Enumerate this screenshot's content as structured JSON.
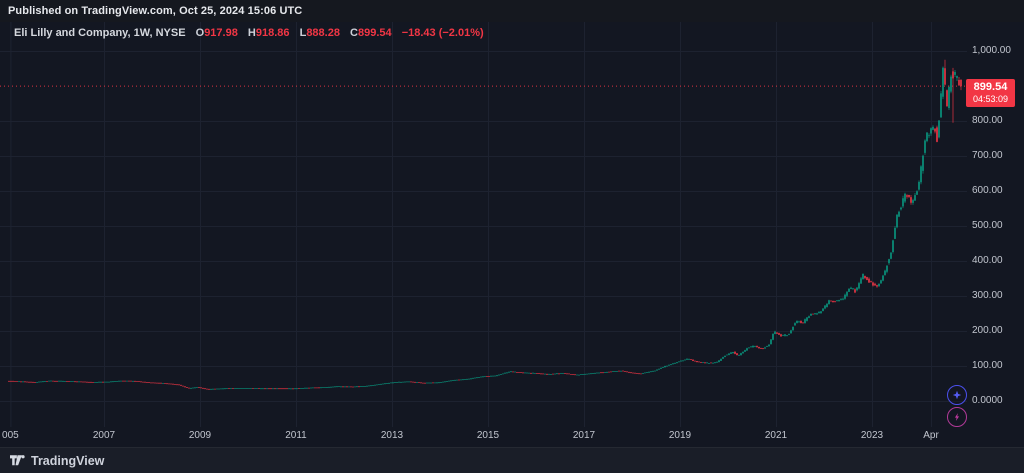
{
  "meta": {
    "published_text": "Published on TradingView.com, Oct 25, 2024 15:06 UTC"
  },
  "legend": {
    "title": "Eli Lilly and Company, 1W, NYSE",
    "ohlc": {
      "o": {
        "k": "O",
        "v": "917.98"
      },
      "h": {
        "k": "H",
        "v": "918.86"
      },
      "l": {
        "k": "L",
        "v": "888.28"
      },
      "c": {
        "k": "C",
        "v": "899.54"
      }
    },
    "change": "−18.43 (−2.01%)"
  },
  "price_label": {
    "price": "899.54",
    "countdown": "04:53:09"
  },
  "footer": {
    "brand": "TradingView"
  },
  "icons": {
    "bottom_right": [
      "four-point-star",
      "lightning-bolt"
    ]
  },
  "colors": {
    "bg": "#131722",
    "grid": "#1d2230",
    "up": "#089981",
    "down": "#f23645",
    "axis_text": "#c2c6cf",
    "price_line": "#f23645",
    "button_blue": "#4b50ee",
    "button_purple": "#b13a98"
  },
  "chart_data": {
    "type": "candlestick",
    "title": "Eli Lilly and Company",
    "interval": "1W",
    "exchange": "NYSE",
    "current": {
      "open": 917.98,
      "high": 918.86,
      "low": 888.28,
      "close": 899.54,
      "change": -18.43,
      "change_pct": -2.01
    },
    "y_axis": {
      "min": 0,
      "max": 1000,
      "tick_step": 100,
      "grid": true,
      "labels": [
        {
          "value": 1000,
          "text": "1,000.00"
        },
        {
          "value": 800,
          "text": "800.00"
        },
        {
          "value": 700,
          "text": "700.00"
        },
        {
          "value": 600,
          "text": "600.00"
        },
        {
          "value": 500,
          "text": "500.00"
        },
        {
          "value": 400,
          "text": "400.00"
        },
        {
          "value": 300,
          "text": "300.00"
        },
        {
          "value": 200,
          "text": "200.00"
        },
        {
          "value": 100,
          "text": "100.00"
        },
        {
          "value": 0,
          "text": "0.0000"
        }
      ]
    },
    "x_axis": {
      "start_year": 2005,
      "end_year": 2024.83,
      "labels": [
        {
          "text": "005",
          "t": 2005.05
        },
        {
          "text": "2007",
          "t": 2007
        },
        {
          "text": "2009",
          "t": 2009
        },
        {
          "text": "2011",
          "t": 2011
        },
        {
          "text": "2013",
          "t": 2013
        },
        {
          "text": "2015",
          "t": 2015
        },
        {
          "text": "2017",
          "t": 2017
        },
        {
          "text": "2019",
          "t": 2019
        },
        {
          "text": "2021",
          "t": 2021
        },
        {
          "text": "2023",
          "t": 2023
        },
        {
          "text": "Apr",
          "t": 2024.23
        }
      ]
    },
    "price_anchors": [
      [
        2005.0,
        57
      ],
      [
        2005.3,
        55
      ],
      [
        2005.6,
        53
      ],
      [
        2005.9,
        57
      ],
      [
        2006.2,
        56
      ],
      [
        2006.5,
        55
      ],
      [
        2006.8,
        53
      ],
      [
        2007.1,
        54
      ],
      [
        2007.4,
        57
      ],
      [
        2007.7,
        56
      ],
      [
        2008.0,
        52
      ],
      [
        2008.3,
        50
      ],
      [
        2008.6,
        46
      ],
      [
        2008.8,
        36
      ],
      [
        2009.0,
        39
      ],
      [
        2009.2,
        33
      ],
      [
        2009.5,
        35
      ],
      [
        2009.8,
        36
      ],
      [
        2010.1,
        36
      ],
      [
        2010.4,
        35
      ],
      [
        2010.7,
        35
      ],
      [
        2011.0,
        35
      ],
      [
        2011.3,
        37
      ],
      [
        2011.6,
        38
      ],
      [
        2011.9,
        41
      ],
      [
        2012.2,
        40
      ],
      [
        2012.5,
        42
      ],
      [
        2012.8,
        48
      ],
      [
        2013.1,
        53
      ],
      [
        2013.4,
        55
      ],
      [
        2013.7,
        51
      ],
      [
        2014.0,
        52
      ],
      [
        2014.3,
        59
      ],
      [
        2014.6,
        62
      ],
      [
        2014.9,
        69
      ],
      [
        2015.2,
        72
      ],
      [
        2015.5,
        84
      ],
      [
        2015.7,
        81
      ],
      [
        2016.0,
        79
      ],
      [
        2016.3,
        76
      ],
      [
        2016.6,
        79
      ],
      [
        2016.9,
        74
      ],
      [
        2017.2,
        79
      ],
      [
        2017.5,
        82
      ],
      [
        2017.8,
        86
      ],
      [
        2018.0,
        81
      ],
      [
        2018.2,
        77
      ],
      [
        2018.5,
        86
      ],
      [
        2018.7,
        98
      ],
      [
        2019.0,
        112
      ],
      [
        2019.2,
        120
      ],
      [
        2019.4,
        112
      ],
      [
        2019.6,
        108
      ],
      [
        2019.8,
        110
      ],
      [
        2020.0,
        132
      ],
      [
        2020.15,
        140
      ],
      [
        2020.25,
        128
      ],
      [
        2020.45,
        152
      ],
      [
        2020.6,
        158
      ],
      [
        2020.75,
        148
      ],
      [
        2020.9,
        162
      ],
      [
        2021.0,
        198
      ],
      [
        2021.15,
        186
      ],
      [
        2021.3,
        190
      ],
      [
        2021.45,
        228
      ],
      [
        2021.6,
        224
      ],
      [
        2021.75,
        248
      ],
      [
        2021.9,
        250
      ],
      [
        2022.0,
        258
      ],
      [
        2022.15,
        288
      ],
      [
        2022.3,
        284
      ],
      [
        2022.45,
        296
      ],
      [
        2022.6,
        324
      ],
      [
        2022.7,
        312
      ],
      [
        2022.85,
        362
      ],
      [
        2023.0,
        338
      ],
      [
        2023.15,
        325
      ],
      [
        2023.3,
        368
      ],
      [
        2023.45,
        430
      ],
      [
        2023.55,
        528
      ],
      [
        2023.65,
        560
      ],
      [
        2023.75,
        595
      ],
      [
        2023.85,
        570
      ],
      [
        2023.95,
        585
      ],
      [
        2024.05,
        650
      ],
      [
        2024.15,
        755
      ],
      [
        2024.25,
        765
      ],
      [
        2024.33,
        792
      ],
      [
        2024.4,
        745
      ],
      [
        2024.47,
        860
      ],
      [
        2024.52,
        955
      ],
      [
        2024.56,
        900
      ],
      [
        2024.6,
        835
      ],
      [
        2024.65,
        898
      ],
      [
        2024.7,
        946
      ],
      [
        2024.75,
        912
      ],
      [
        2024.79,
        948
      ],
      [
        2024.83,
        900
      ]
    ],
    "annotations": {
      "last_price_line": 899.54,
      "peak_high": 975,
      "post_peak_low": 795
    }
  }
}
